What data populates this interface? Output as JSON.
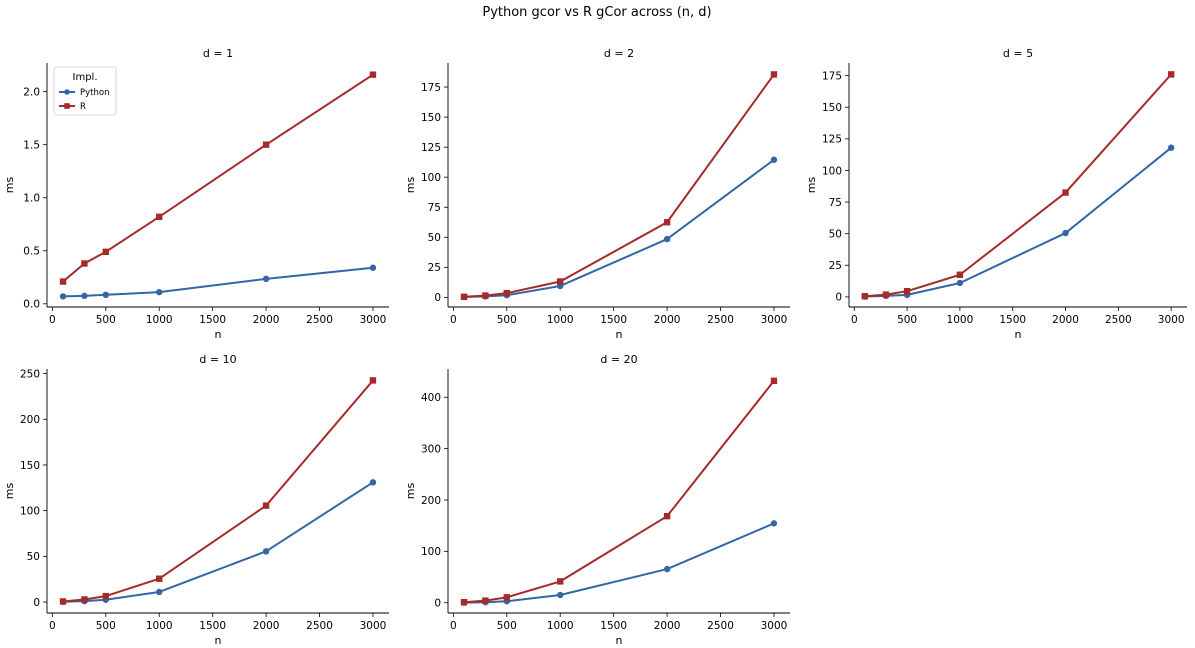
{
  "figure": {
    "title": "Python gcor vs R gCor across (n, d)",
    "colors": {
      "Python": "#3465a4",
      "R": "#a52a2a"
    }
  },
  "legend": {
    "title": "Impl.",
    "items": [
      "Python",
      "R"
    ],
    "placement": "upper-left of first panel"
  },
  "chart_data": [
    {
      "type": "line",
      "title": "d = 1",
      "xlabel": "n",
      "ylabel": "ms",
      "x": [
        100,
        300,
        500,
        1000,
        2000,
        3000
      ],
      "xlim": [
        -50,
        3150
      ],
      "ylim": [
        -0.03,
        2.27
      ],
      "xticks": [
        0,
        500,
        1000,
        1500,
        2000,
        2500,
        3000
      ],
      "yticks": [
        0.0,
        0.5,
        1.0,
        1.5,
        2.0
      ],
      "ytick_labels": [
        "0.0",
        "0.5",
        "1.0",
        "1.5",
        "2.0"
      ],
      "series": [
        {
          "name": "Python",
          "values": [
            0.07,
            0.075,
            0.085,
            0.11,
            0.235,
            0.34
          ]
        },
        {
          "name": "R",
          "values": [
            0.21,
            0.38,
            0.49,
            0.82,
            1.5,
            2.16
          ]
        }
      ],
      "legend": true
    },
    {
      "type": "line",
      "title": "d = 2",
      "xlabel": "n",
      "ylabel": "ms",
      "x": [
        100,
        300,
        500,
        1000,
        2000,
        3000
      ],
      "xlim": [
        -50,
        3150
      ],
      "ylim": [
        -8,
        195
      ],
      "xticks": [
        0,
        500,
        1000,
        1500,
        2000,
        2500,
        3000
      ],
      "yticks": [
        0,
        25,
        50,
        75,
        100,
        125,
        150,
        175
      ],
      "series": [
        {
          "name": "Python",
          "values": [
            0.3,
            0.8,
            1.8,
            9.5,
            48.5,
            114.5
          ]
        },
        {
          "name": "R",
          "values": [
            0.5,
            1.5,
            3.5,
            13.2,
            62.5,
            185.5
          ]
        }
      ],
      "legend": false
    },
    {
      "type": "line",
      "title": "d = 5",
      "xlabel": "n",
      "ylabel": "ms",
      "x": [
        100,
        300,
        500,
        1000,
        2000,
        3000
      ],
      "xlim": [
        -50,
        3150
      ],
      "ylim": [
        -8,
        185
      ],
      "xticks": [
        0,
        500,
        1000,
        1500,
        2000,
        2500,
        3000
      ],
      "yticks": [
        0,
        25,
        50,
        75,
        100,
        125,
        150,
        175
      ],
      "series": [
        {
          "name": "Python",
          "values": [
            0.3,
            0.8,
            1.6,
            11.0,
            50.5,
            118.0
          ]
        },
        {
          "name": "R",
          "values": [
            0.5,
            1.8,
            4.5,
            17.5,
            82.5,
            176.0
          ]
        }
      ],
      "legend": false
    },
    {
      "type": "line",
      "title": "d = 10",
      "xlabel": "n",
      "ylabel": "ms",
      "x": [
        100,
        300,
        500,
        1000,
        2000,
        3000
      ],
      "xlim": [
        -50,
        3150
      ],
      "ylim": [
        -12,
        255
      ],
      "xticks": [
        0,
        500,
        1000,
        1500,
        2000,
        2500,
        3000
      ],
      "yticks": [
        0,
        50,
        100,
        150,
        200,
        250
      ],
      "series": [
        {
          "name": "Python",
          "values": [
            0.3,
            1.0,
            2.5,
            11.0,
            55.5,
            131.0
          ]
        },
        {
          "name": "R",
          "values": [
            0.6,
            2.8,
            6.5,
            25.5,
            105.5,
            242.5
          ]
        }
      ],
      "legend": false
    },
    {
      "type": "line",
      "title": "d = 20",
      "xlabel": "n",
      "ylabel": "ms",
      "x": [
        100,
        300,
        500,
        1000,
        2000,
        3000
      ],
      "xlim": [
        -50,
        3150
      ],
      "ylim": [
        -20,
        455
      ],
      "xticks": [
        0,
        500,
        1000,
        1500,
        2000,
        2500,
        3000
      ],
      "yticks": [
        0,
        100,
        200,
        300,
        400
      ],
      "series": [
        {
          "name": "Python",
          "values": [
            0.3,
            1.0,
            2.8,
            15.0,
            65.5,
            154.5
          ]
        },
        {
          "name": "R",
          "values": [
            1.0,
            4.0,
            10.5,
            41.5,
            168.5,
            432.0
          ]
        }
      ],
      "legend": false
    }
  ]
}
